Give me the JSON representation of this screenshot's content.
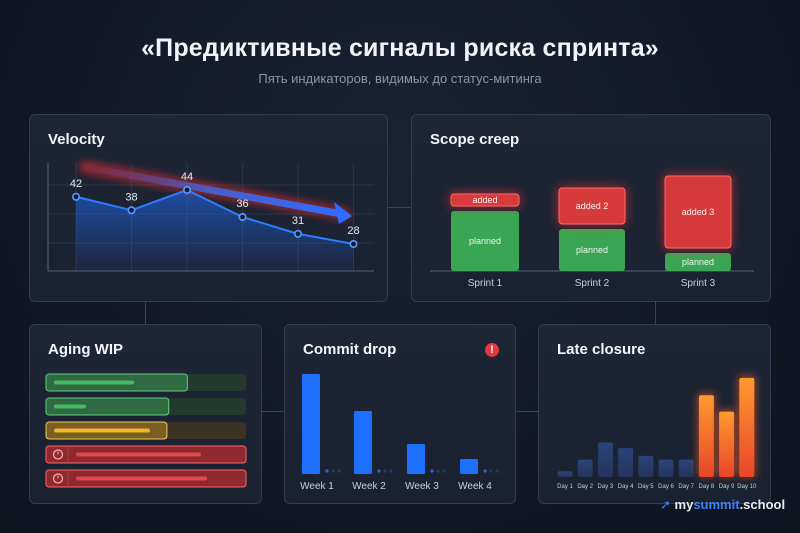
{
  "header": {
    "title": "«Предиктивные сигналы риска спринта»",
    "subtitle": "Пять индикаторов, видимых до статус-митинга"
  },
  "brand": {
    "part1": "my",
    "part2": "summit",
    "part3": ".school"
  },
  "colors": {
    "blue": "#1f6fff",
    "green": "#3aa653",
    "red": "#d63a3a",
    "amber": "#e0a82e",
    "orange": "#ff6a2a"
  },
  "chart_data": [
    {
      "type": "line",
      "title": "Velocity",
      "x": [
        1,
        2,
        3,
        4,
        5,
        6
      ],
      "values": [
        42,
        38,
        44,
        36,
        31,
        28
      ],
      "ylim": [
        20,
        52
      ],
      "grid": true,
      "annotation": "downward trend arrow"
    },
    {
      "type": "bar",
      "title": "Scope creep",
      "stacked": true,
      "categories": [
        "Sprint 1",
        "Sprint 2",
        "Sprint 3"
      ],
      "series": [
        {
          "name": "planned",
          "values": [
            10,
            7,
            3
          ]
        },
        {
          "name": "added",
          "values": [
            2,
            6,
            12
          ]
        }
      ],
      "segment_labels": {
        "sprint1": [
          "planned",
          "added"
        ],
        "sprint2": [
          "planned",
          "added 2"
        ],
        "sprint3": [
          "planned",
          "added 3"
        ]
      }
    },
    {
      "type": "bar",
      "title": "Aging WIP",
      "orientation": "horizontal",
      "items": [
        {
          "status": "ok",
          "fill": 0.4,
          "extent": 0.76
        },
        {
          "status": "ok",
          "fill": 0.16,
          "extent": 0.66
        },
        {
          "status": "warning",
          "fill": 0.48,
          "extent": 0.65
        },
        {
          "status": "stale",
          "fill": 0.78,
          "extent": 1.0,
          "icon": "clock-icon"
        },
        {
          "status": "stale",
          "fill": 0.82,
          "extent": 1.0,
          "icon": "clock-icon"
        }
      ]
    },
    {
      "type": "bar",
      "title": "Commit drop",
      "categories": [
        "Week 1",
        "Week 2",
        "Week 3",
        "Week 4"
      ],
      "values": [
        100,
        63,
        30,
        15
      ],
      "ylim": [
        0,
        100
      ],
      "alert_icon": "!"
    },
    {
      "type": "bar",
      "title": "Late closure",
      "categories": [
        "Day 1",
        "Day 2",
        "Day 3",
        "Day 4",
        "Day 5",
        "Day 6",
        "Day 7",
        "Day 8",
        "Day 9",
        "Day 10"
      ],
      "values": [
        6,
        18,
        36,
        30,
        22,
        18,
        18,
        85,
        68,
        103
      ],
      "ylim": [
        0,
        105
      ],
      "highlighted_from_index": 7
    }
  ]
}
